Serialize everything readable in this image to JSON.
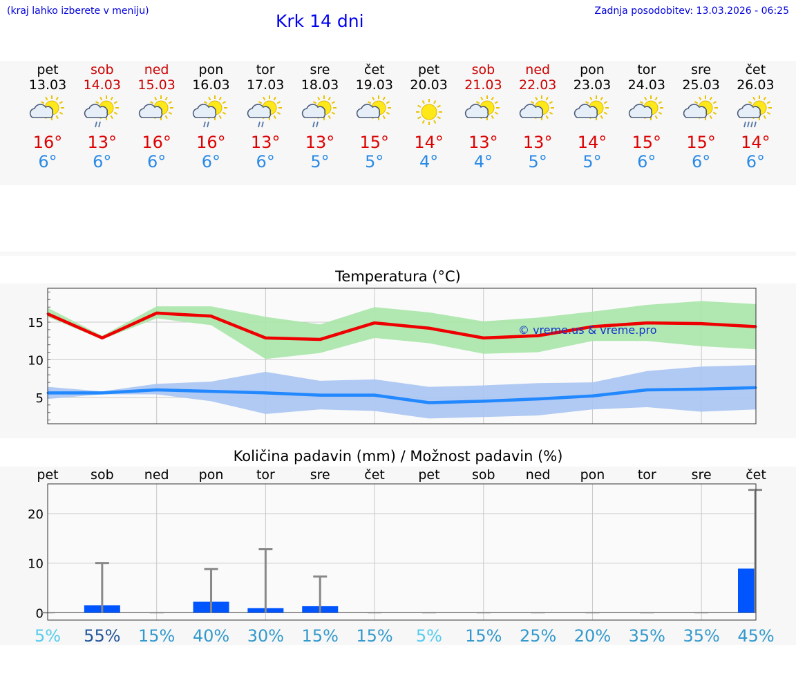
{
  "header": {
    "hint": "(kraj lahko izberete v meniju)",
    "title": "Krk 14 dni",
    "updated": "Zadnja posodobitev: 13.03.2026 - 06:25"
  },
  "days": [
    {
      "name": "pet",
      "date": "13.03",
      "weekend": false,
      "icon": "sun-cloud-icon",
      "hi": "16°",
      "lo": "6°"
    },
    {
      "name": "sob",
      "date": "14.03",
      "weekend": true,
      "icon": "sun-cloud-rain-icon",
      "hi": "13°",
      "lo": "6°"
    },
    {
      "name": "ned",
      "date": "15.03",
      "weekend": true,
      "icon": "sun-cloud-icon",
      "hi": "16°",
      "lo": "6°"
    },
    {
      "name": "pon",
      "date": "16.03",
      "weekend": false,
      "icon": "sun-cloud-rain-icon",
      "hi": "16°",
      "lo": "6°"
    },
    {
      "name": "tor",
      "date": "17.03",
      "weekend": false,
      "icon": "sun-cloud-rain-icon",
      "hi": "13°",
      "lo": "6°"
    },
    {
      "name": "sre",
      "date": "18.03",
      "weekend": false,
      "icon": "sun-cloud-rain-icon",
      "hi": "13°",
      "lo": "5°"
    },
    {
      "name": "čet",
      "date": "19.03",
      "weekend": false,
      "icon": "sun-cloud-icon",
      "hi": "15°",
      "lo": "5°"
    },
    {
      "name": "pet",
      "date": "20.03",
      "weekend": false,
      "icon": "sun-icon",
      "hi": "14°",
      "lo": "4°"
    },
    {
      "name": "sob",
      "date": "21.03",
      "weekend": true,
      "icon": "sun-cloud-icon",
      "hi": "13°",
      "lo": "4°"
    },
    {
      "name": "ned",
      "date": "22.03",
      "weekend": true,
      "icon": "sun-cloud-icon",
      "hi": "13°",
      "lo": "5°"
    },
    {
      "name": "pon",
      "date": "23.03",
      "weekend": false,
      "icon": "sun-cloud-icon",
      "hi": "14°",
      "lo": "5°"
    },
    {
      "name": "tor",
      "date": "24.03",
      "weekend": false,
      "icon": "sun-cloud-icon",
      "hi": "15°",
      "lo": "6°"
    },
    {
      "name": "sre",
      "date": "25.03",
      "weekend": false,
      "icon": "sun-cloud-icon",
      "hi": "15°",
      "lo": "6°"
    },
    {
      "name": "čet",
      "date": "26.03",
      "weekend": false,
      "icon": "sun-cloud-heavy-rain-icon",
      "hi": "14°",
      "lo": "6°"
    }
  ],
  "colors": {
    "hi": "#dd0000",
    "lo": "#2a8ae6",
    "weekend": "#cc0000",
    "hiBand": "#a8e6a8",
    "loBand": "#a8c4f2",
    "precipBar": "#0055ff",
    "hiLine": "#ee0000",
    "loLine": "#2288ff"
  },
  "chart_data": [
    {
      "type": "line",
      "title": "Temperatura (°C)",
      "watermark": "© vreme.us & vreme.pro",
      "ylim": [
        1.5,
        19.5
      ],
      "yticks": [
        "5",
        "10",
        "15"
      ],
      "x": [
        0,
        1,
        2,
        3,
        4,
        5,
        6,
        7,
        8,
        9,
        10,
        11,
        12,
        13
      ],
      "series": [
        {
          "name": "max",
          "values": [
            16.1,
            12.9,
            16.2,
            15.8,
            12.9,
            12.7,
            14.9,
            14.2,
            12.9,
            13.2,
            14.4,
            14.9,
            14.8,
            14.4
          ],
          "band_min": [
            15.7,
            12.7,
            15.5,
            14.6,
            10.1,
            10.9,
            12.9,
            12.2,
            10.8,
            11.0,
            12.5,
            12.5,
            11.8,
            11.4
          ],
          "band_max": [
            16.9,
            13.2,
            17.1,
            17.1,
            15.7,
            14.7,
            17.0,
            16.3,
            15.1,
            15.6,
            16.4,
            17.3,
            17.8,
            17.4
          ]
        },
        {
          "name": "min",
          "values": [
            5.6,
            5.6,
            6.0,
            5.8,
            5.6,
            5.3,
            5.3,
            4.3,
            4.5,
            4.8,
            5.2,
            6.0,
            6.1,
            6.3
          ],
          "band_min": [
            4.8,
            5.4,
            5.4,
            4.5,
            2.8,
            3.4,
            3.2,
            2.2,
            2.4,
            2.6,
            3.4,
            3.7,
            3.1,
            3.4
          ],
          "band_max": [
            6.4,
            5.8,
            6.8,
            7.1,
            8.4,
            7.2,
            7.4,
            6.4,
            6.6,
            6.9,
            7.0,
            8.5,
            9.1,
            9.3
          ]
        }
      ]
    },
    {
      "type": "bar",
      "title": "Količina padavin (mm) / Možnost padavin (%)",
      "categories": [
        "pet",
        "sob",
        "ned",
        "pon",
        "tor",
        "sre",
        "čet",
        "pet",
        "sob",
        "ned",
        "pon",
        "tor",
        "sre",
        "čet"
      ],
      "ylim": [
        -1.5,
        26
      ],
      "yticks": [
        "0",
        "10",
        "20"
      ],
      "values": [
        0,
        1.5,
        0,
        2.2,
        0.9,
        1.3,
        0,
        0,
        0,
        0,
        0,
        0,
        0,
        8.9
      ],
      "maxima": [
        0,
        10,
        0,
        8.8,
        12.8,
        7.3,
        0,
        0,
        0,
        0,
        0,
        0,
        0,
        24.8
      ],
      "probabilities": [
        "5%",
        "55%",
        "15%",
        "40%",
        "30%",
        "15%",
        "15%",
        "5%",
        "15%",
        "25%",
        "20%",
        "35%",
        "35%",
        "45%"
      ],
      "probability_colors": [
        "#55ccee",
        "#225599",
        "#3399cc",
        "#3399cc",
        "#3399cc",
        "#3399cc",
        "#3399cc",
        "#55ccee",
        "#3399cc",
        "#3399cc",
        "#3399cc",
        "#3399cc",
        "#3399cc",
        "#3399cc"
      ]
    }
  ]
}
